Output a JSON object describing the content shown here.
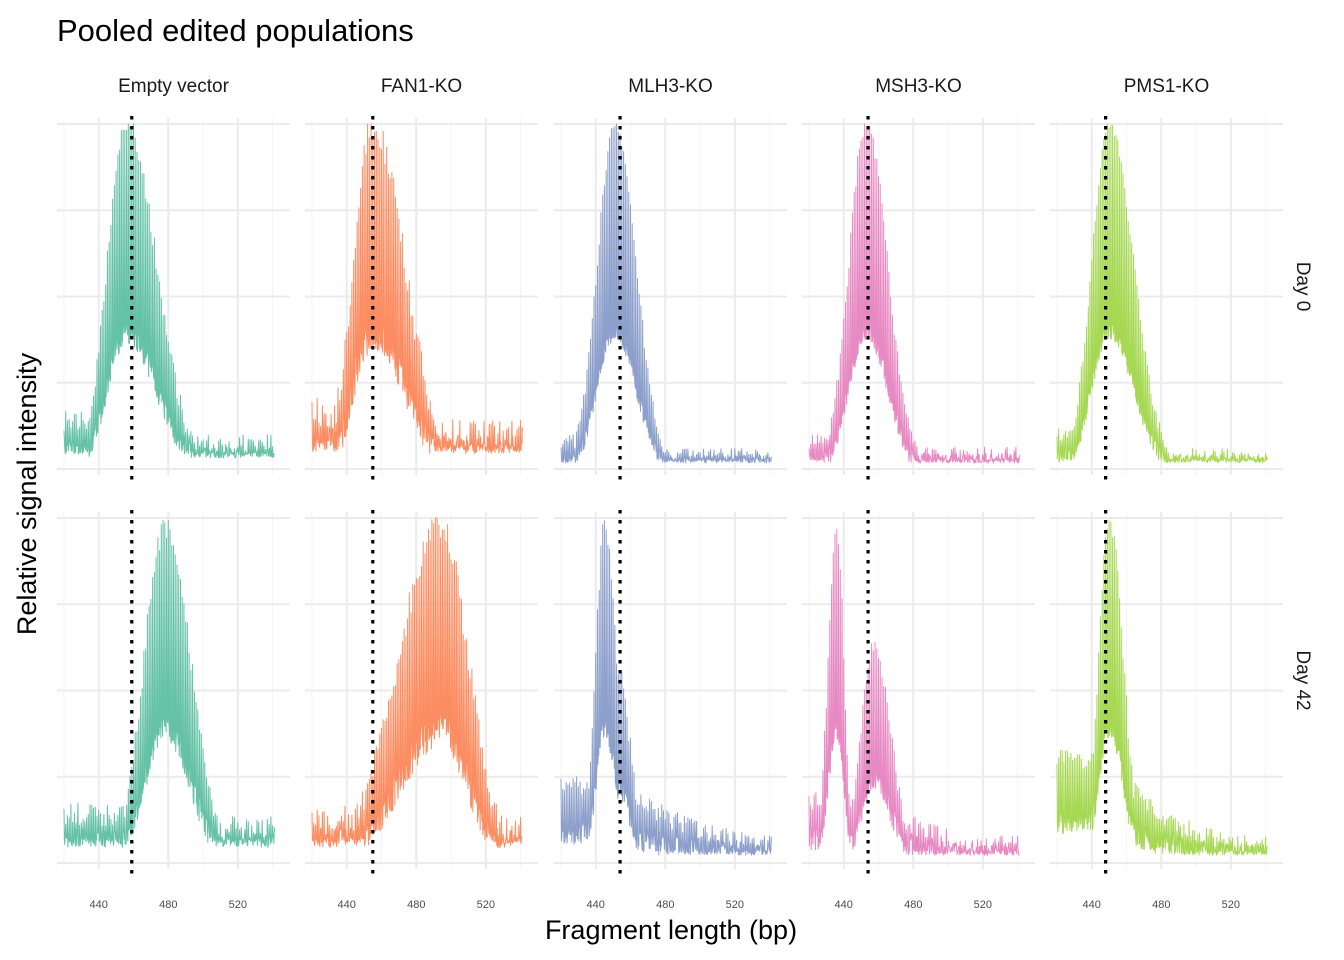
{
  "chart_data": {
    "type": "line",
    "title": "Pooled edited populations",
    "xlabel": "Fragment length (bp)",
    "ylabel": "Relative signal intensity",
    "xlim": [
      416,
      550
    ],
    "xticks": [
      440,
      480,
      520
    ],
    "ylim": [
      0,
      1
    ],
    "grid": true,
    "legend": "none",
    "rows": [
      "Day 0",
      "Day 42"
    ],
    "columns": [
      {
        "name": "Empty vector",
        "color": "#66C2A5",
        "ref_bp": 459
      },
      {
        "name": "FAN1-KO",
        "color": "#FC8D62",
        "ref_bp": 455
      },
      {
        "name": "MLH3-KO",
        "color": "#8DA0CB",
        "ref_bp": 454
      },
      {
        "name": "MSH3-KO",
        "color": "#E78AC3",
        "ref_bp": 454
      },
      {
        "name": "PMS1-KO",
        "color": "#A6D854",
        "ref_bp": 448
      }
    ],
    "panels": [
      {
        "row": "Day 0",
        "column": "Empty vector",
        "peaks": [
          {
            "mu": 456,
            "sl": 11,
            "sr": 17,
            "h": 1.0
          }
        ],
        "tail": 0.14,
        "tail_len": 45,
        "floor": 0.07,
        "noise": 0.06
      },
      {
        "row": "Day 0",
        "column": "FAN1-KO",
        "peaks": [
          {
            "mu": 455,
            "sl": 11,
            "sr": 18,
            "h": 1.0
          }
        ],
        "tail": 0.16,
        "tail_len": 55,
        "floor": 0.1,
        "noise": 0.09
      },
      {
        "row": "Day 0",
        "column": "MLH3-KO",
        "peaks": [
          {
            "mu": 451,
            "sl": 10,
            "sr": 12,
            "h": 1.0
          }
        ],
        "tail": 0.08,
        "tail_len": 30,
        "floor": 0.04,
        "noise": 0.04
      },
      {
        "row": "Day 0",
        "column": "MSH3-KO",
        "peaks": [
          {
            "mu": 453,
            "sl": 10,
            "sr": 12,
            "h": 1.0
          }
        ],
        "tail": 0.08,
        "tail_len": 30,
        "floor": 0.04,
        "noise": 0.05
      },
      {
        "row": "Day 0",
        "column": "PMS1-KO",
        "peaks": [
          {
            "mu": 450,
            "sl": 10,
            "sr": 14,
            "h": 1.0
          }
        ],
        "tail": 0.1,
        "tail_len": 40,
        "floor": 0.04,
        "noise": 0.04
      },
      {
        "row": "Day 42",
        "column": "Empty vector",
        "peaks": [
          {
            "mu": 478,
            "sl": 12,
            "sr": 15,
            "h": 0.97
          }
        ],
        "tail": 0.14,
        "tail_len": 60,
        "floor": 0.1,
        "noise": 0.07
      },
      {
        "row": "Day 42",
        "column": "FAN1-KO",
        "peaks": [
          {
            "mu": 494,
            "sl": 24,
            "sr": 16,
            "h": 0.98
          }
        ],
        "tail": 0.12,
        "tail_len": 45,
        "floor": 0.1,
        "noise": 0.09
      },
      {
        "row": "Day 42",
        "column": "MLH3-KO",
        "peaks": [
          {
            "mu": 445,
            "sl": 5,
            "sr": 7,
            "h": 0.98
          },
          {
            "mu": 453,
            "sl": 5,
            "sr": 7,
            "h": 0.55
          }
        ],
        "tail": 0.22,
        "tail_len": 55,
        "floor": 0.05,
        "noise": 0.06
      },
      {
        "row": "Day 42",
        "column": "MSH3-KO",
        "peaks": [
          {
            "mu": 436,
            "sl": 5,
            "sr": 4,
            "h": 0.98
          },
          {
            "mu": 457,
            "sl": 7,
            "sr": 10,
            "h": 0.62
          }
        ],
        "tail": 0.18,
        "tail_len": 45,
        "floor": 0.05,
        "noise": 0.06
      },
      {
        "row": "Day 42",
        "column": "PMS1-KO",
        "peaks": [
          {
            "mu": 450,
            "sl": 6,
            "sr": 8,
            "h": 1.0
          }
        ],
        "tail": 0.3,
        "tail_len": 40,
        "floor": 0.05,
        "noise": 0.06
      }
    ]
  }
}
